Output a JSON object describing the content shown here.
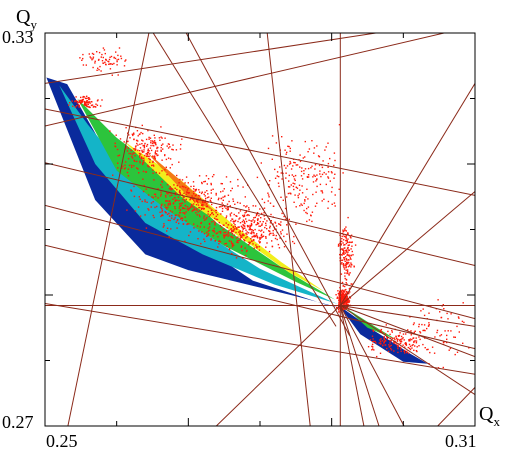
{
  "chart_data": {
    "type": "scatter",
    "xlabel": {
      "main": "Q",
      "sub": "x"
    },
    "ylabel": {
      "main": "Q",
      "sub": "y"
    },
    "xlim": [
      0.25,
      0.31
    ],
    "ylim": [
      0.27,
      0.33
    ],
    "x_tick_labels": [
      "0.25",
      "0.31"
    ],
    "y_tick_labels": [
      "0.27",
      "0.33"
    ],
    "grid": false,
    "resonance_line_color": "#8b2a1a",
    "resonance_lines": [
      {
        "p1": [
          0.25,
          0.3223
        ],
        "p2": [
          0.31,
          0.3323
        ]
      },
      {
        "p1": [
          0.25,
          0.3158
        ],
        "p2": [
          0.31,
          0.3311
        ]
      },
      {
        "p1": [
          0.25,
          0.3184
        ],
        "p2": [
          0.31,
          0.3052
        ]
      },
      {
        "p1": [
          0.25,
          0.3102
        ],
        "p2": [
          0.31,
          0.2945
        ]
      },
      {
        "p1": [
          0.25,
          0.3037
        ],
        "p2": [
          0.31,
          0.2864
        ]
      },
      {
        "p1": [
          0.25,
          0.2976
        ],
        "p2": [
          0.31,
          0.2818
        ]
      },
      {
        "p1": [
          0.25,
          0.2887
        ],
        "p2": [
          0.31,
          0.2779
        ]
      },
      {
        "p1": [
          0.25,
          0.2884
        ],
        "p2": [
          0.31,
          0.2884
        ]
      },
      {
        "p1": [
          0.2532,
          0.27
        ],
        "p2": [
          0.2645,
          0.33
        ]
      },
      {
        "p1": [
          0.2651,
          0.33
        ],
        "p2": [
          0.2906,
          0.2852
        ]
      },
      {
        "p1": [
          0.2697,
          0.33
        ],
        "p2": [
          0.2925,
          0.2838
        ]
      },
      {
        "p1": [
          0.281,
          0.33
        ],
        "p2": [
          0.287,
          0.27
        ]
      },
      {
        "p1": [
          0.2912,
          0.33
        ],
        "p2": [
          0.2912,
          0.27
        ]
      },
      {
        "p1": [
          0.2912,
          0.2884
        ],
        "p2": [
          0.3001,
          0.27
        ]
      },
      {
        "p1": [
          0.2912,
          0.2884
        ],
        "p2": [
          0.2966,
          0.27
        ]
      },
      {
        "p1": [
          0.2912,
          0.2884
        ],
        "p2": [
          0.2945,
          0.27
        ]
      },
      {
        "p1": [
          0.2912,
          0.2884
        ],
        "p2": [
          0.31,
          0.3058
        ]
      },
      {
        "p1": [
          0.2912,
          0.2884
        ],
        "p2": [
          0.31,
          0.3223
        ]
      },
      {
        "p1": [
          0.2912,
          0.2884
        ],
        "p2": [
          0.31,
          0.2748
        ]
      },
      {
        "p1": [
          0.2912,
          0.2884
        ],
        "p2": [
          0.31,
          0.2806
        ]
      },
      {
        "p1": [
          0.2912,
          0.2884
        ],
        "p2": [
          0.31,
          0.2852
        ]
      },
      {
        "p1": [
          0.2912,
          0.2884
        ],
        "p2": [
          0.2739,
          0.27
        ]
      },
      {
        "p1": [
          0.3048,
          0.27
        ],
        "p2": [
          0.31,
          0.2759
        ]
      }
    ],
    "footprint_bands": [
      {
        "name": "blue",
        "color": "#0a2a9c",
        "polygon": [
          [
            0.2502,
            0.3232
          ],
          [
            0.2531,
            0.3222
          ],
          [
            0.26,
            0.309
          ],
          [
            0.271,
            0.2981
          ],
          [
            0.279,
            0.2922
          ],
          [
            0.289,
            0.2886
          ],
          [
            0.292,
            0.2878
          ],
          [
            0.285,
            0.2898
          ],
          [
            0.27,
            0.2938
          ],
          [
            0.264,
            0.2962
          ],
          [
            0.257,
            0.3045
          ],
          [
            0.2502,
            0.3232
          ]
        ]
      },
      {
        "name": "cyan",
        "color": "#14b4c8",
        "polygon": [
          [
            0.252,
            0.322
          ],
          [
            0.256,
            0.316
          ],
          [
            0.262,
            0.308
          ],
          [
            0.27,
            0.301
          ],
          [
            0.28,
            0.294
          ],
          [
            0.29,
            0.289
          ],
          [
            0.291,
            0.2886
          ],
          [
            0.282,
            0.2916
          ],
          [
            0.272,
            0.2962
          ],
          [
            0.264,
            0.301
          ],
          [
            0.257,
            0.31
          ],
          [
            0.252,
            0.322
          ]
        ]
      },
      {
        "name": "green",
        "color": "#2cc43c",
        "polygon": [
          [
            0.2545,
            0.32
          ],
          [
            0.26,
            0.314
          ],
          [
            0.266,
            0.309
          ],
          [
            0.274,
            0.301
          ],
          [
            0.284,
            0.2935
          ],
          [
            0.2905,
            0.2893
          ],
          [
            0.285,
            0.292
          ],
          [
            0.275,
            0.2975
          ],
          [
            0.267,
            0.303
          ],
          [
            0.26,
            0.309
          ],
          [
            0.2545,
            0.32
          ]
        ]
      },
      {
        "name": "yellow",
        "color": "#f2ee1c",
        "polygon": [
          [
            0.261,
            0.3135
          ],
          [
            0.269,
            0.3075
          ],
          [
            0.276,
            0.301
          ],
          [
            0.283,
            0.295
          ],
          [
            0.289,
            0.2905
          ],
          [
            0.284,
            0.2935
          ],
          [
            0.277,
            0.299
          ],
          [
            0.269,
            0.305
          ],
          [
            0.261,
            0.3135
          ]
        ]
      },
      {
        "name": "orange",
        "color": "#f47a14",
        "polygon": [
          [
            0.264,
            0.312
          ],
          [
            0.27,
            0.3065
          ],
          [
            0.274,
            0.3025
          ],
          [
            0.27,
            0.305
          ],
          [
            0.264,
            0.312
          ]
        ]
      },
      {
        "name": "lower-blue",
        "color": "#0a2a9c",
        "polygon": [
          [
            0.291,
            0.2884
          ],
          [
            0.296,
            0.2845
          ],
          [
            0.301,
            0.281
          ],
          [
            0.3034,
            0.2795
          ],
          [
            0.3,
            0.2798
          ],
          [
            0.294,
            0.284
          ],
          [
            0.291,
            0.2884
          ]
        ]
      },
      {
        "name": "lower-green",
        "color": "#2cc43c",
        "polygon": [
          [
            0.292,
            0.288
          ],
          [
            0.296,
            0.2852
          ],
          [
            0.299,
            0.2832
          ],
          [
            0.295,
            0.285
          ],
          [
            0.292,
            0.288
          ]
        ]
      }
    ],
    "scatter_color": "#ff1a0a",
    "scatter_regions": [
      {
        "center": [
          0.27,
          0.304
        ],
        "spread": [
          0.01,
          0.006
        ],
        "count": 420
      },
      {
        "center": [
          0.278,
          0.3
        ],
        "spread": [
          0.008,
          0.005
        ],
        "count": 360
      },
      {
        "center": [
          0.264,
          0.312
        ],
        "spread": [
          0.006,
          0.005
        ],
        "count": 220
      },
      {
        "center": [
          0.2555,
          0.3195
        ],
        "spread": [
          0.003,
          0.0012
        ],
        "count": 90
      },
      {
        "center": [
          0.2915,
          0.2895
        ],
        "spread": [
          0.0012,
          0.0025
        ],
        "count": 260
      },
      {
        "center": [
          0.292,
          0.296
        ],
        "spread": [
          0.0015,
          0.006
        ],
        "count": 160
      },
      {
        "center": [
          0.286,
          0.308
        ],
        "spread": [
          0.008,
          0.01
        ],
        "count": 200
      },
      {
        "center": [
          0.299,
          0.283
        ],
        "spread": [
          0.006,
          0.003
        ],
        "count": 160
      },
      {
        "center": [
          0.305,
          0.285
        ],
        "spread": [
          0.006,
          0.008
        ],
        "count": 70
      },
      {
        "center": [
          0.258,
          0.326
        ],
        "spread": [
          0.005,
          0.003
        ],
        "count": 70
      }
    ]
  }
}
